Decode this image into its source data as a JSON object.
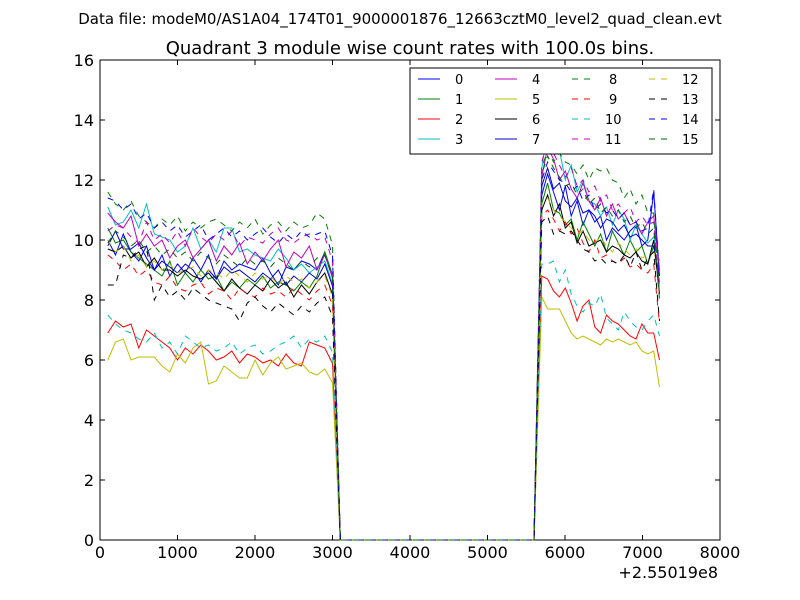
{
  "suptitle": "Data file: modeM0/AS1A04_174T01_9000001876_12663cztM0_level2_quad_clean.evt",
  "chart_data": {
    "type": "line",
    "title": "Quadrant 3 module wise count rates with 100.0s bins.",
    "xlabel": "",
    "ylabel": "",
    "x_offset_label": "+2.55019e8",
    "xlim": [
      0,
      8000
    ],
    "ylim": [
      0,
      16
    ],
    "xticks": [
      0,
      1000,
      2000,
      3000,
      4000,
      5000,
      6000,
      7000,
      8000
    ],
    "yticks": [
      0,
      2,
      4,
      6,
      8,
      10,
      12,
      14,
      16
    ],
    "grid": false,
    "legend": {
      "location": "top-right",
      "columns": 4
    },
    "series": [
      {
        "name": "0",
        "color": "#0000ff",
        "dash": "solid",
        "seg1": [
          10.0,
          9.5,
          10.2,
          9.6,
          9.3,
          9.8,
          9.0,
          9.5,
          8.8,
          9.2,
          8.9,
          9.4,
          9.0,
          9.5,
          8.7,
          9.3,
          9.0,
          9.2,
          9.1,
          9.0,
          9.4,
          8.9,
          8.5,
          9.1,
          9.0,
          9.3,
          9.2,
          9.0,
          9.6
        ],
        "seg2": [
          11.5,
          12.2,
          11.6,
          11.0,
          11.8,
          10.8,
          11.3,
          10.5,
          11.0,
          10.6,
          10.8,
          10.0,
          10.4,
          10.2,
          10.0,
          10.3,
          10.5,
          9.8,
          10.0,
          11.6,
          8.8
        ]
      },
      {
        "name": "1",
        "color": "#008000",
        "dash": "solid",
        "seg1": [
          10.4,
          9.9,
          10.0,
          9.6,
          9.4,
          9.2,
          9.0,
          8.8,
          9.3,
          8.5,
          8.9,
          8.6,
          9.0,
          8.7,
          8.8,
          8.3,
          8.6,
          8.4,
          8.7,
          8.5,
          8.8,
          8.4,
          8.6,
          8.5,
          8.3,
          8.6,
          8.4,
          8.8,
          9.6
        ],
        "seg2": [
          11.2,
          11.9,
          11.0,
          10.9,
          10.5,
          10.7,
          10.0,
          10.6,
          10.2,
          9.8,
          10.2,
          9.6,
          10.3,
          9.9,
          9.5,
          10.0,
          9.6,
          9.8,
          9.2,
          9.8,
          8.6
        ]
      },
      {
        "name": "2",
        "color": "#ff0000",
        "dash": "solid",
        "seg1": [
          6.9,
          7.3,
          7.1,
          7.2,
          6.4,
          7.0,
          6.8,
          6.6,
          6.4,
          6.0,
          6.4,
          6.2,
          6.5,
          6.3,
          6.0,
          6.1,
          6.3,
          5.9,
          6.2,
          6.1,
          5.9,
          6.0,
          5.8,
          6.2,
          5.9,
          5.8,
          6.6,
          6.5,
          6.4
        ],
        "seg2": [
          8.8,
          8.7,
          8.3,
          8.1,
          8.4,
          7.9,
          7.3,
          7.8,
          8.0,
          7.1,
          6.9,
          7.5,
          7.3,
          7.2,
          7.0,
          6.8,
          6.7,
          7.2,
          6.9,
          6.9,
          6.0
        ]
      },
      {
        "name": "3",
        "color": "#00bfbf",
        "dash": "solid",
        "seg1": [
          11.1,
          10.5,
          10.6,
          11.0,
          10.4,
          11.2,
          10.2,
          10.1,
          10.0,
          9.6,
          9.8,
          10.4,
          9.7,
          10.0,
          9.6,
          10.4,
          10.4,
          9.6,
          9.7,
          9.5,
          9.4,
          9.3,
          9.7,
          9.4,
          9.0,
          9.2,
          8.9,
          9.1,
          9.3
        ],
        "seg2": [
          12.4,
          13.7,
          14.2,
          13.0,
          12.0,
          12.5,
          11.6,
          12.0,
          11.3,
          11.2,
          10.8,
          11.1,
          10.5,
          11.0,
          10.7,
          10.0,
          10.5,
          10.2,
          9.9,
          10.1,
          9.3
        ]
      },
      {
        "name": "4",
        "color": "#bf00bf",
        "dash": "solid",
        "seg1": [
          10.9,
          10.6,
          10.4,
          10.8,
          9.8,
          10.2,
          9.8,
          10.0,
          9.4,
          9.8,
          10.0,
          9.4,
          9.7,
          10.0,
          9.3,
          9.8,
          9.5,
          9.9,
          9.2,
          9.6,
          9.3,
          9.7,
          10.0,
          9.1,
          9.6,
          9.4,
          9.8,
          9.0,
          9.5
        ],
        "seg2": [
          12.1,
          13.1,
          12.7,
          12.0,
          12.3,
          11.7,
          11.4,
          11.9,
          11.3,
          11.0,
          11.4,
          10.8,
          11.2,
          10.7,
          10.9,
          10.5,
          10.6,
          10.2,
          10.6,
          10.8,
          9.0
        ]
      },
      {
        "name": "5",
        "color": "#bfbf00",
        "dash": "solid",
        "seg1": [
          6.0,
          6.6,
          6.7,
          6.0,
          6.1,
          6.1,
          6.1,
          5.8,
          5.6,
          6.2,
          5.9,
          6.4,
          6.6,
          5.2,
          5.3,
          5.8,
          5.6,
          5.4,
          5.4,
          6.0,
          5.5,
          5.9,
          6.1,
          5.7,
          5.8,
          5.9,
          5.6,
          5.5,
          5.7
        ],
        "seg2": [
          8.1,
          7.7,
          7.7,
          7.7,
          7.3,
          6.9,
          6.7,
          6.8,
          6.7,
          6.6,
          6.5,
          6.7,
          6.6,
          6.7,
          6.6,
          6.5,
          6.6,
          6.3,
          6.2,
          6.3,
          5.1
        ]
      },
      {
        "name": "6",
        "color": "#000000",
        "dash": "solid",
        "seg1": [
          9.7,
          9.6,
          9.8,
          9.4,
          9.6,
          9.1,
          9.4,
          9.0,
          9.0,
          8.8,
          9.0,
          8.8,
          8.7,
          8.9,
          8.6,
          8.3,
          8.7,
          8.4,
          8.2,
          8.5,
          8.3,
          8.7,
          8.4,
          8.6,
          8.1,
          8.5,
          8.2,
          8.6,
          8.9
        ],
        "seg2": [
          11.0,
          11.5,
          10.8,
          11.2,
          10.4,
          10.6,
          9.9,
          10.3,
          9.8,
          9.9,
          10.0,
          9.6,
          9.8,
          9.7,
          9.5,
          9.4,
          9.6,
          9.3,
          9.2,
          10.0,
          8.2
        ]
      },
      {
        "name": "7",
        "color": "#0000cd",
        "dash": "solid",
        "seg1": [
          9.8,
          10.3,
          9.7,
          9.7,
          9.9,
          9.4,
          9.0,
          9.3,
          9.1,
          8.9,
          9.2,
          9.0,
          8.6,
          9.0,
          8.7,
          9.1,
          8.9,
          9.0,
          8.8,
          8.6,
          8.9,
          8.7,
          9.0,
          8.5,
          8.8,
          8.6,
          8.9,
          8.7,
          9.2
        ],
        "seg2": [
          11.8,
          12.4,
          11.7,
          11.9,
          11.3,
          11.1,
          11.4,
          10.9,
          11.0,
          10.8,
          10.4,
          10.7,
          10.6,
          10.3,
          10.5,
          10.1,
          10.2,
          10.0,
          9.8,
          9.8,
          8.8
        ]
      },
      {
        "name": "8",
        "color": "#008000",
        "dash": "dashed",
        "seg1": [
          11.6,
          11.2,
          11.0,
          11.3,
          10.8,
          10.6,
          10.4,
          10.7,
          10.5,
          10.8,
          10.3,
          10.6,
          10.4,
          10.6,
          10.7,
          10.5,
          10.3,
          10.6,
          10.4,
          10.7,
          10.2,
          10.5,
          10.6,
          10.3,
          10.6,
          10.4,
          10.5,
          10.9,
          10.7
        ],
        "seg2": [
          12.4,
          13.0,
          12.6,
          12.9,
          12.6,
          12.5,
          12.2,
          12.5,
          12.0,
          12.4,
          12.3,
          12.4,
          12.0,
          11.9,
          11.4,
          11.7,
          11.2,
          11.5,
          10.9,
          10.9,
          8.2
        ]
      },
      {
        "name": "9",
        "color": "#ff0000",
        "dash": "dashed",
        "seg1": [
          9.5,
          9.3,
          9.0,
          9.2,
          8.8,
          9.0,
          8.6,
          8.5,
          8.8,
          8.4,
          8.3,
          8.5,
          8.6,
          8.2,
          8.4,
          8.3,
          8.0,
          8.4,
          8.2,
          8.1,
          8.4,
          8.2,
          8.3,
          8.1,
          8.4,
          8.2,
          8.0,
          8.3,
          8.5
        ],
        "seg2": [
          10.8,
          11.0,
          10.7,
          10.3,
          10.6,
          10.2,
          10.4,
          9.9,
          9.6,
          10.0,
          9.4,
          9.5,
          9.3,
          9.2,
          9.4,
          9.1,
          9.2,
          9.0,
          8.9,
          9.2,
          7.2
        ]
      },
      {
        "name": "10",
        "color": "#00bfbf",
        "dash": "dashed",
        "seg1": [
          7.5,
          7.2,
          7.0,
          6.9,
          6.7,
          6.6,
          6.9,
          6.4,
          6.6,
          6.2,
          6.8,
          6.6,
          6.4,
          6.5,
          6.3,
          6.4,
          6.6,
          6.2,
          6.4,
          6.5,
          6.2,
          6.3,
          6.5,
          6.6,
          6.8,
          6.4,
          6.7,
          6.6,
          6.8
        ],
        "seg2": [
          9.2,
          9.2,
          9.3,
          8.6,
          9.0,
          8.2,
          7.8,
          7.6,
          7.9,
          7.8,
          8.2,
          7.4,
          7.2,
          7.0,
          7.6,
          7.3,
          7.1,
          7.0,
          7.3,
          7.5,
          6.8
        ]
      },
      {
        "name": "11",
        "color": "#bf00bf",
        "dash": "dashed",
        "seg1": [
          10.3,
          10.5,
          10.4,
          10.1,
          9.9,
          10.6,
          10.0,
          10.2,
          9.9,
          10.3,
          9.8,
          10.4,
          10.1,
          9.9,
          10.2,
          10.0,
          10.3,
          9.8,
          10.1,
          10.0,
          9.9,
          10.2,
          10.4,
          10.0,
          9.9,
          10.1,
          10.2,
          10.0,
          10.1
        ],
        "seg2": [
          12.6,
          13.3,
          12.9,
          12.5,
          12.1,
          12.4,
          11.8,
          12.0,
          11.6,
          11.8,
          11.3,
          11.5,
          11.0,
          11.2,
          10.9,
          11.1,
          10.6,
          10.8,
          10.5,
          10.6,
          8.4
        ]
      },
      {
        "name": "12",
        "color": "#bfbf00",
        "dash": "dashed",
        "seg1": [
          10.0,
          9.6,
          9.8,
          9.3,
          9.5,
          9.1,
          9.3,
          9.0,
          9.2,
          8.9,
          9.0,
          9.1,
          8.8,
          9.0,
          8.9,
          8.7,
          9.0,
          8.8,
          8.6,
          8.9,
          8.7,
          8.8,
          8.5,
          8.8,
          8.6,
          8.7,
          8.4,
          8.6,
          8.8
        ],
        "seg2": [
          11.3,
          11.4,
          11.0,
          10.8,
          10.6,
          10.4,
          10.2,
          10.3,
          10.0,
          9.9,
          10.1,
          9.8,
          9.6,
          9.9,
          9.7,
          9.5,
          9.7,
          9.4,
          9.5,
          9.6,
          9.1
        ]
      },
      {
        "name": "13",
        "color": "#000000",
        "dash": "dashed",
        "seg1": [
          8.5,
          8.5,
          9.5,
          9.4,
          9.7,
          9.8,
          8.0,
          8.5,
          8.1,
          8.3,
          8.0,
          8.4,
          8.2,
          8.0,
          7.9,
          7.8,
          7.7,
          7.3,
          7.9,
          8.1,
          7.8,
          7.6,
          7.9,
          7.7,
          7.5,
          7.8,
          7.6,
          7.9,
          8.1
        ],
        "seg2": [
          10.6,
          10.8,
          10.2,
          10.3,
          10.2,
          10.3,
          10.0,
          9.7,
          9.6,
          9.3,
          9.4,
          9.2,
          9.3,
          9.2,
          9.5,
          9.1,
          9.6,
          9.0,
          9.4,
          9.6,
          7.3
        ]
      },
      {
        "name": "14",
        "color": "#0000ff",
        "dash": "dashed",
        "seg1": [
          11.4,
          11.3,
          11.0,
          11.2,
          10.7,
          10.9,
          10.4,
          10.6,
          10.3,
          10.5,
          10.1,
          10.3,
          10.5,
          10.0,
          10.2,
          10.4,
          10.1,
          10.3,
          10.0,
          10.2,
          10.4,
          10.1,
          9.9,
          10.2,
          10.0,
          10.3,
          10.1,
          10.2,
          10.3
        ],
        "seg2": [
          12.0,
          12.6,
          12.3,
          12.0,
          11.9,
          11.6,
          11.8,
          11.3,
          11.5,
          11.0,
          11.2,
          10.9,
          11.0,
          10.7,
          10.9,
          10.5,
          10.6,
          10.3,
          10.4,
          11.7,
          8.8
        ]
      },
      {
        "name": "15",
        "color": "#006400",
        "dash": "dashed",
        "seg1": [
          9.9,
          10.3,
          10.1,
          9.8,
          10.0,
          9.6,
          9.8,
          9.5,
          9.7,
          9.4,
          9.6,
          9.3,
          9.6,
          9.4,
          9.2,
          9.5,
          9.3,
          9.1,
          9.4,
          9.2,
          9.3,
          9.1,
          9.4,
          9.2,
          9.0,
          9.3,
          9.1,
          9.4,
          9.5
        ],
        "seg2": [
          12.2,
          12.8,
          12.4,
          12.1,
          11.8,
          11.9,
          11.5,
          11.7,
          11.2,
          11.4,
          10.9,
          11.1,
          10.8,
          11.0,
          10.6,
          10.8,
          10.4,
          10.6,
          10.2,
          10.4,
          8.0
        ]
      }
    ]
  }
}
